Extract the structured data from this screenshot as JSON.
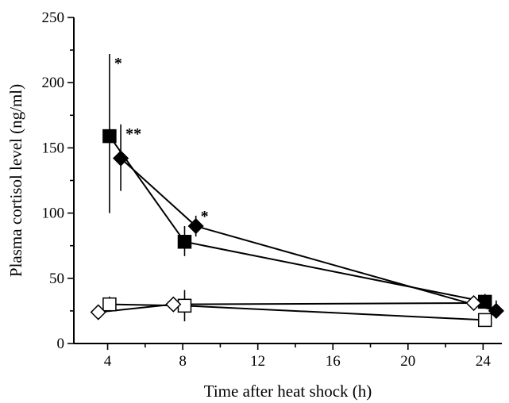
{
  "chart_data": {
    "type": "line",
    "title": "",
    "xlabel": "Time after heat shock (h)",
    "ylabel": "Plasma cortisol level (ng/ml)",
    "xlim": [
      2.2,
      25
    ],
    "ylim": [
      0,
      250
    ],
    "xticks": [
      4,
      8,
      12,
      16,
      20,
      24
    ],
    "yticks": [
      0,
      50,
      100,
      150,
      200,
      250
    ],
    "grid": false,
    "legend": "none",
    "series": [
      {
        "marker": "filled-square",
        "points": [
          {
            "x": 4.1,
            "y": 159,
            "err_low": 100,
            "err_high": 222
          },
          {
            "x": 8.1,
            "y": 78,
            "err_low": 67,
            "err_high": 90
          },
          {
            "x": 24.1,
            "y": 32,
            "err_low": 27,
            "err_high": 38
          }
        ],
        "annotations": [
          {
            "x": 4.1,
            "text": "*"
          }
        ]
      },
      {
        "marker": "filled-diamond",
        "points": [
          {
            "x": 4.7,
            "y": 142,
            "err_low": 117,
            "err_high": 168
          },
          {
            "x": 8.7,
            "y": 90,
            "err_low": 82,
            "err_high": 98
          },
          {
            "x": 24.7,
            "y": 25,
            "err_low": 20,
            "err_high": 33
          }
        ],
        "annotations": [
          {
            "x": 4.7,
            "text": "**"
          },
          {
            "x": 8.7,
            "text": "*"
          }
        ]
      },
      {
        "marker": "open-square",
        "points": [
          {
            "x": 4.1,
            "y": 30,
            "err_low": 25,
            "err_high": 36
          },
          {
            "x": 8.1,
            "y": 29,
            "err_low": 17,
            "err_high": 41
          },
          {
            "x": 24.1,
            "y": 18,
            "err_low": 15,
            "err_high": 21
          }
        ]
      },
      {
        "marker": "open-diamond",
        "points": [
          {
            "x": 3.5,
            "y": 24,
            "err_low": 21,
            "err_high": 27
          },
          {
            "x": 7.5,
            "y": 30,
            "err_low": 27,
            "err_high": 33
          },
          {
            "x": 23.5,
            "y": 31,
            "err_low": 28,
            "err_high": 34
          }
        ]
      }
    ]
  }
}
